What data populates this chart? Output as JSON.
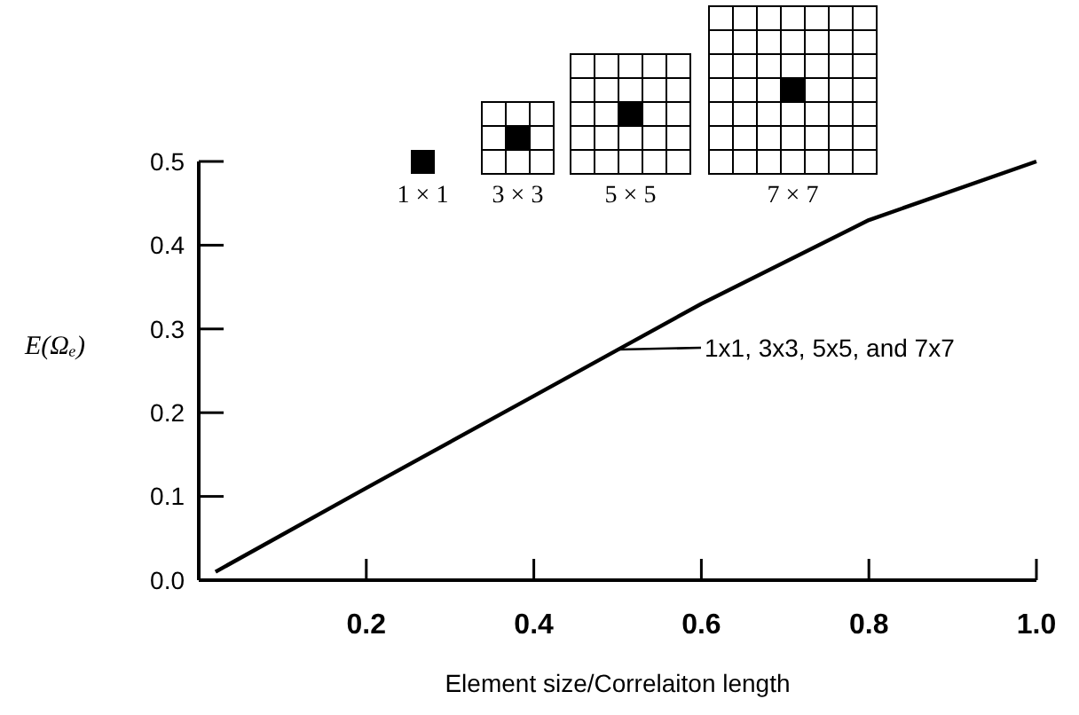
{
  "chart_data": {
    "type": "line",
    "xlabel": "Element size/Correlaiton length",
    "ylabel": "E(Ωₑ)",
    "xlim": [
      0,
      1.0
    ],
    "xticks": [
      0.2,
      0.4,
      0.6,
      0.8,
      {
        "value": 1.0,
        "label": "1.0"
      }
    ],
    "ylim": [
      0,
      0.5
    ],
    "yticks": [
      {
        "value": 0,
        "label": "0.0"
      },
      0.1,
      0.2,
      0.3,
      0.4,
      0.5
    ],
    "grid": false,
    "marker": "none",
    "line_style": "solid",
    "series": [
      {
        "color": "#000000",
        "x": [
          0.02,
          0.2,
          0.4,
          0.5,
          0.6,
          0.8,
          1.0
        ],
        "values": [
          0.01,
          0.11,
          0.22,
          0.275,
          0.33,
          0.43,
          0.5
        ]
      }
    ],
    "annotations": [
      "1x1, 3x3, 5x5, and 7x7",
      "1 × 1",
      "3 × 3",
      "5 × 5",
      "7 × 7"
    ]
  }
}
